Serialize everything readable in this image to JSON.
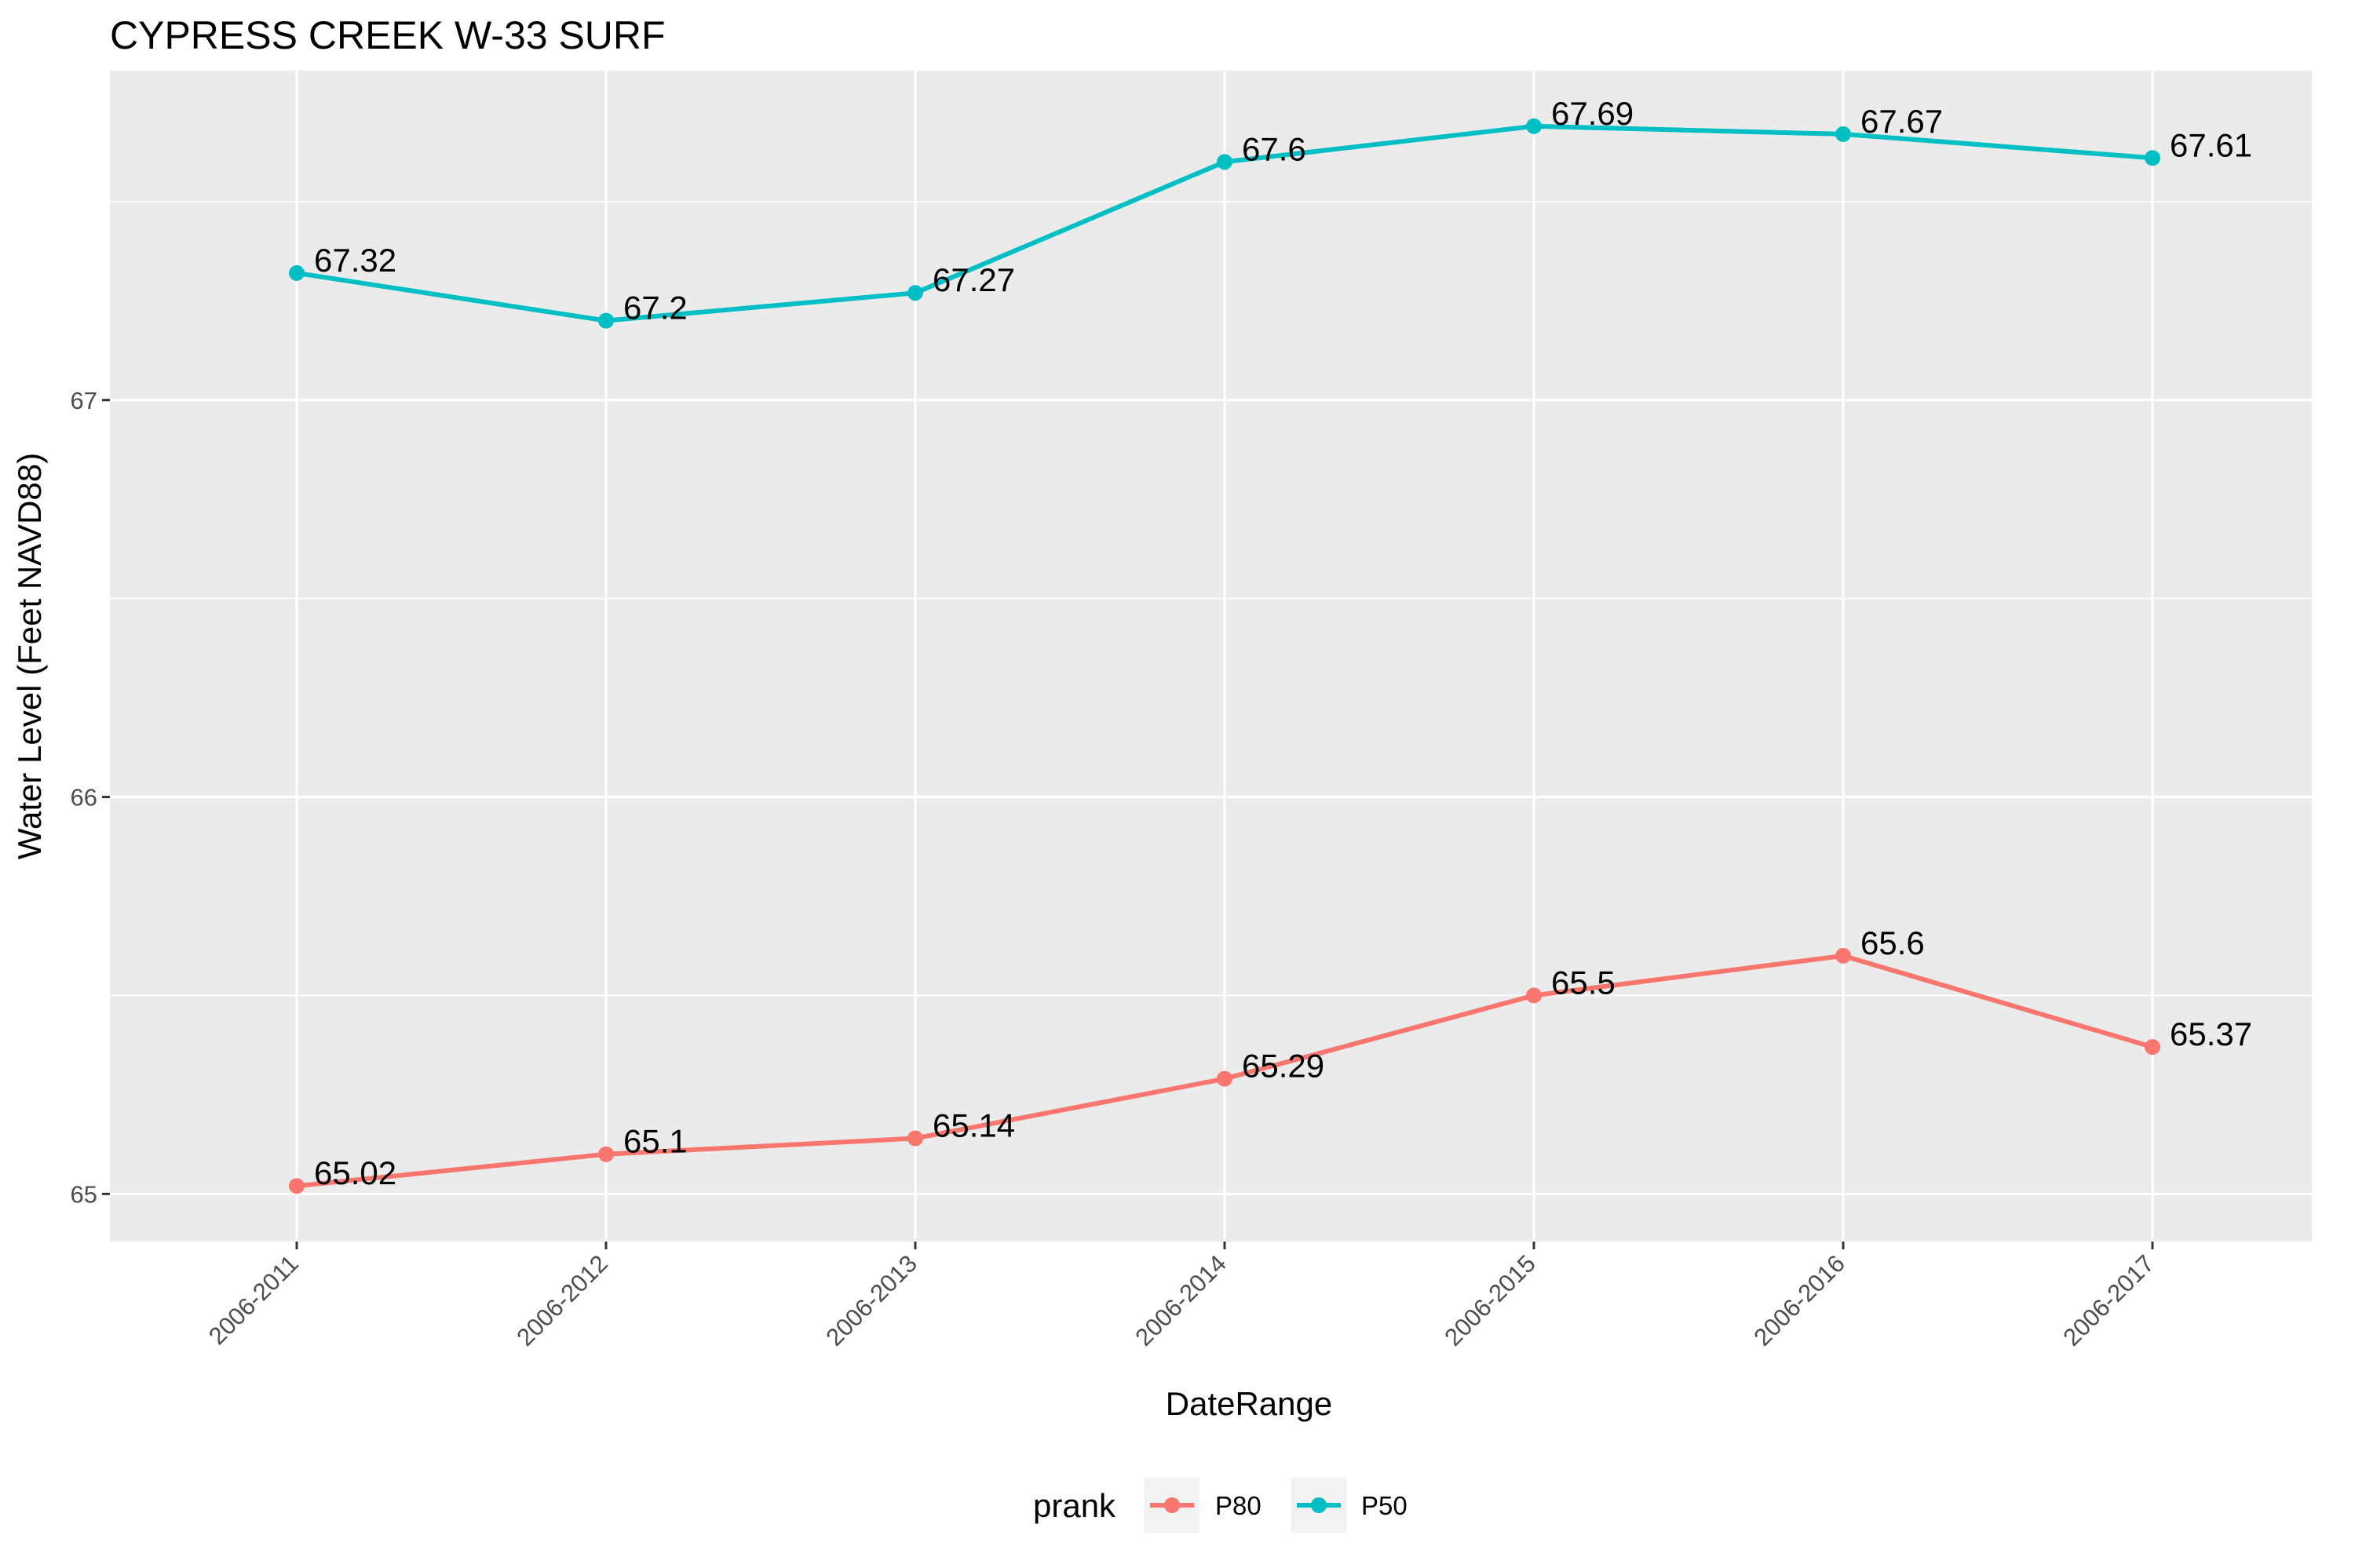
{
  "chart_data": {
    "type": "line",
    "title": "CYPRESS CREEK W-33 SURF",
    "xlabel": "DateRange",
    "ylabel": "Water Level (Feet NAVD88)",
    "categories": [
      "2006-2011",
      "2006-2012",
      "2006-2013",
      "2006-2014",
      "2006-2015",
      "2006-2016",
      "2006-2017"
    ],
    "series": [
      {
        "name": "P80",
        "color": "#F8766D",
        "values": [
          65.02,
          65.1,
          65.14,
          65.29,
          65.5,
          65.6,
          65.37
        ]
      },
      {
        "name": "P50",
        "color": "#00BFC4",
        "values": [
          67.32,
          67.2,
          67.27,
          67.6,
          67.69,
          67.67,
          67.61
        ]
      }
    ],
    "data_labels": {
      "P80": [
        "65.02",
        "65.1",
        "65.14",
        "65.29",
        "65.5",
        "65.6",
        "65.37"
      ],
      "P50": [
        "67.32",
        "67.2",
        "67.27",
        "67.6",
        "67.69",
        "67.67",
        "67.61"
      ]
    },
    "ylim": [
      64.88,
      67.83
    ],
    "yticks": [
      "65",
      "66",
      "67"
    ],
    "grid": true,
    "legend": {
      "title": "prank",
      "position": "bottom",
      "entries": [
        "P80",
        "P50"
      ]
    }
  }
}
